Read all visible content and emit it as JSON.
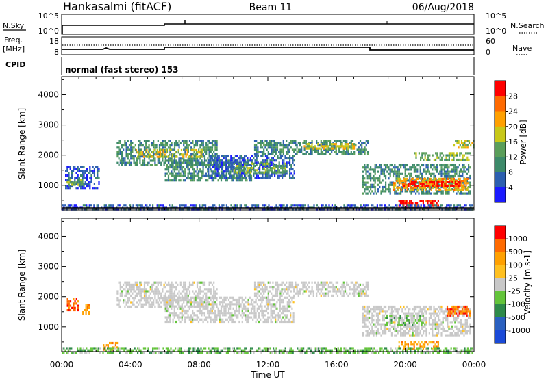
{
  "header": {
    "station": "Hankasalmi (fitACF)",
    "beam": "Beam 11",
    "date": "06/Aug/2018"
  },
  "noise_panel": {
    "left_label": "N.Sky",
    "left_ticks": [
      "10^5",
      "10^0"
    ],
    "right_label": "N.Search",
    "right_ticks": [
      "10^5",
      "10^0"
    ]
  },
  "freq_panel": {
    "left_label_1": "Freq.",
    "left_label_2": "[MHz]",
    "left_ticks": [
      "18",
      "8"
    ],
    "right_label": "Nave",
    "right_ticks": [
      "60",
      "0"
    ]
  },
  "cpid_panel": {
    "label": "CPID",
    "text": "normal (fast stereo) 153"
  },
  "colors": {
    "power_scale": [
      "#1a1aff",
      "#2c5fb0",
      "#3d8a6a",
      "#5a9e5a",
      "#c8c818",
      "#ffa000",
      "#ff6a00",
      "#ff0000"
    ],
    "velocity_scale": [
      "#1a4ad8",
      "#2a60c0",
      "#2e8a4a",
      "#63c43a",
      "#c8c8c8",
      "#ffc020",
      "#ffa000",
      "#ff6a00",
      "#ff0000"
    ]
  },
  "chart_data": [
    {
      "type": "heatmap",
      "name_panel": "power",
      "ylabel": "Slant Range [km]",
      "yticks": [
        "4000",
        "3000",
        "2000",
        "1000"
      ],
      "ylim": [
        180,
        4600
      ],
      "xlim": [
        0,
        24
      ],
      "colorbar": {
        "label": "Power [dB]",
        "ticks": [
          "28",
          "24",
          "20",
          "16",
          "12",
          "8",
          "4"
        ],
        "range": [
          0,
          32
        ]
      },
      "regions": [
        {
          "t0": 3.2,
          "t1": 9.0,
          "r0": 1700,
          "r1": 2500,
          "level": 2
        },
        {
          "t0": 4.3,
          "t1": 8.2,
          "r0": 1950,
          "r1": 2200,
          "level": 4
        },
        {
          "t0": 6.0,
          "t1": 11.0,
          "r0": 1150,
          "r1": 1850,
          "level": 2
        },
        {
          "t0": 8.5,
          "t1": 13.5,
          "r0": 1250,
          "r1": 2000,
          "level": 1
        },
        {
          "t0": 10.0,
          "t1": 13.0,
          "r0": 1450,
          "r1": 1750,
          "level": 3
        },
        {
          "t0": 0.2,
          "t1": 2.2,
          "r0": 900,
          "r1": 1650,
          "level": 1
        },
        {
          "t0": 0.3,
          "t1": 1.2,
          "r0": 1050,
          "r1": 1200,
          "level": 3
        },
        {
          "t0": 11.2,
          "t1": 17.8,
          "r0": 2050,
          "r1": 2500,
          "level": 2
        },
        {
          "t0": 14.0,
          "t1": 17.0,
          "r0": 2200,
          "r1": 2400,
          "level": 4
        },
        {
          "t0": 17.5,
          "t1": 23.8,
          "r0": 750,
          "r1": 1700,
          "level": 2
        },
        {
          "t0": 19.2,
          "t1": 23.6,
          "r0": 850,
          "r1": 1250,
          "level": 5
        },
        {
          "t0": 19.8,
          "t1": 23.2,
          "r0": 950,
          "r1": 1150,
          "level": 7
        },
        {
          "t0": 19.6,
          "t1": 21.9,
          "r0": 280,
          "r1": 520,
          "level": 7
        },
        {
          "t0": 20.5,
          "t1": 23.8,
          "r0": 1850,
          "r1": 2100,
          "level": 3
        },
        {
          "t0": 22.8,
          "t1": 24.0,
          "r0": 2250,
          "r1": 2500,
          "level": 4
        },
        {
          "t0": 0.0,
          "t1": 24.0,
          "r0": 180,
          "r1": 380,
          "level": 1
        }
      ]
    },
    {
      "type": "heatmap",
      "name_panel": "velocity",
      "xlabel": "Time UT",
      "ylabel": "Slant Range [km]",
      "yticks": [
        "4000",
        "3000",
        "2000",
        "1000"
      ],
      "xticks": [
        "00:00",
        "04:00",
        "08:00",
        "12:00",
        "16:00",
        "20:00",
        "00:00"
      ],
      "ylim": [
        180,
        4600
      ],
      "xlim": [
        0,
        24
      ],
      "colorbar": {
        "label": "Velocity [m s-1]",
        "ticks": [
          "1000",
          "500",
          "100",
          "25",
          "-25",
          "-100",
          "-500",
          "-1000"
        ]
      },
      "regions": [
        {
          "t0": 3.2,
          "t1": 9.0,
          "r0": 1700,
          "r1": 2500,
          "level": 4
        },
        {
          "t0": 6.0,
          "t1": 13.5,
          "r0": 1150,
          "r1": 2000,
          "level": 4
        },
        {
          "t0": 11.2,
          "t1": 17.8,
          "r0": 2050,
          "r1": 2500,
          "level": 4
        },
        {
          "t0": 17.5,
          "t1": 23.8,
          "r0": 750,
          "r1": 1700,
          "level": 4
        },
        {
          "t0": 18.8,
          "t1": 21.0,
          "r0": 1100,
          "r1": 1400,
          "level": 3
        },
        {
          "t0": 19.6,
          "t1": 21.9,
          "r0": 280,
          "r1": 520,
          "level": 6
        },
        {
          "t0": 22.4,
          "t1": 23.8,
          "r0": 1350,
          "r1": 1700,
          "level": 7
        },
        {
          "t0": 0.3,
          "t1": 1.0,
          "r0": 1550,
          "r1": 1950,
          "level": 7
        },
        {
          "t0": 1.2,
          "t1": 1.6,
          "r0": 1450,
          "r1": 1750,
          "level": 6
        },
        {
          "t0": 2.4,
          "t1": 3.2,
          "r0": 220,
          "r1": 500,
          "level": 6
        },
        {
          "t0": 0.0,
          "t1": 24.0,
          "r0": 180,
          "r1": 330,
          "level": 3
        }
      ]
    }
  ]
}
